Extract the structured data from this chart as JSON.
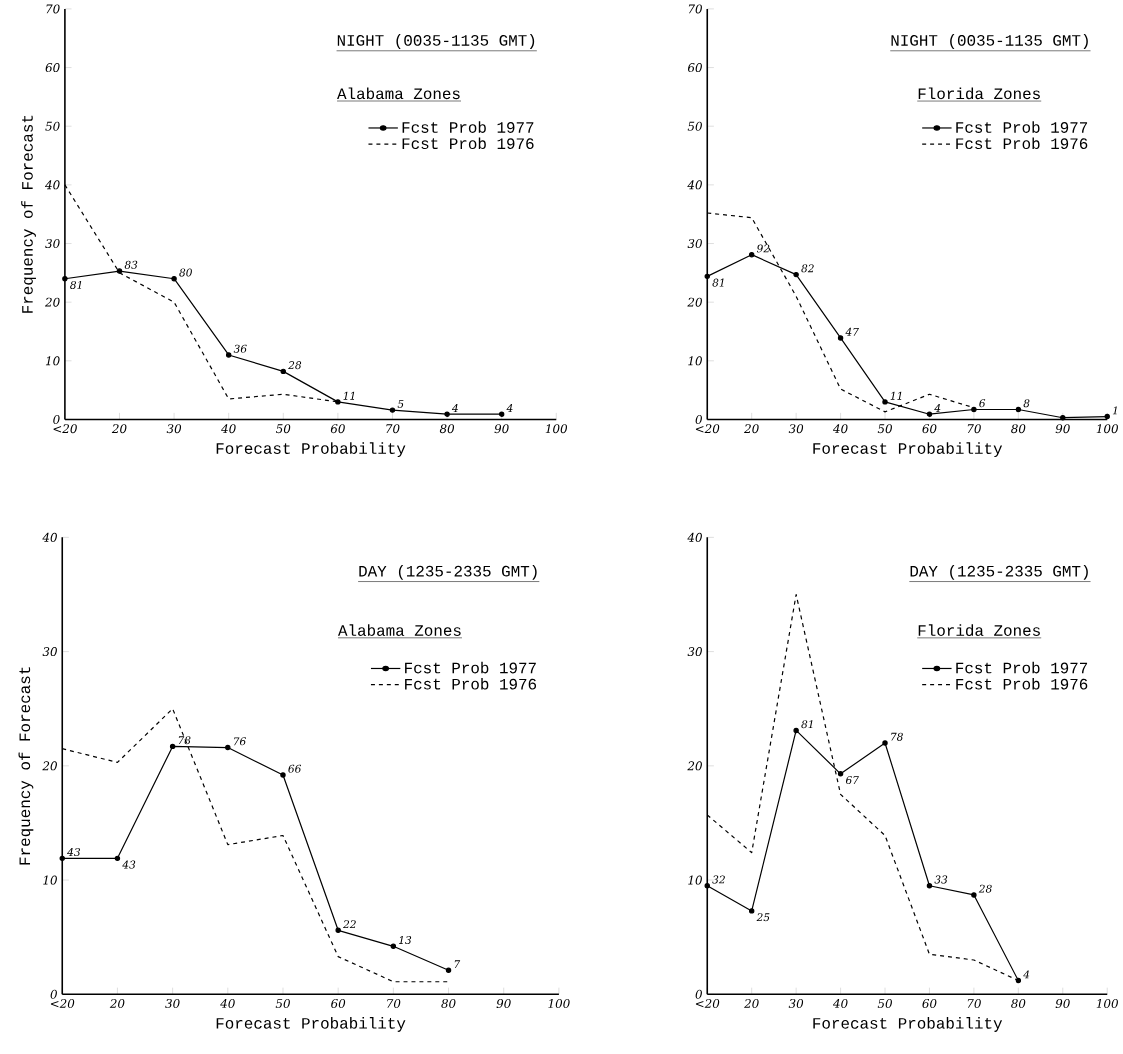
{
  "chart_data": [
    {
      "type": "line",
      "title": "NIGHT (0035-1135 GMT)",
      "subtitle": "Alabama Zones",
      "xlabel": "Forecast Probability",
      "ylabel": "Frequency of Forecast",
      "categories": [
        "<20",
        "20",
        "30",
        "40",
        "50",
        "60",
        "70",
        "80",
        "90",
        "100"
      ],
      "ylim": [
        0,
        70
      ],
      "yticks": [
        0,
        10,
        20,
        30,
        40,
        50,
        60,
        70
      ],
      "legend": "top right",
      "series": [
        {
          "name": "Fcst Prob 1977",
          "color": "#000000",
          "line_style": "solid",
          "marker": "circle",
          "values": [
            24,
            25.3,
            24,
            11,
            8.2,
            3,
            1.6,
            0.9,
            0.9,
            null
          ]
        },
        {
          "name": "Fcst Prob 1976",
          "color": "#000000",
          "line_style": "dashed",
          "marker": "none",
          "values": [
            40,
            25,
            20,
            3.5,
            4.3,
            3,
            null,
            null,
            null,
            null
          ]
        }
      ],
      "annotations": [
        {
          "text": "81",
          "x": "<20",
          "y": 24
        },
        {
          "text": "83",
          "x": "20",
          "y": 25.3
        },
        {
          "text": "80",
          "x": "30",
          "y": 24
        },
        {
          "text": "36",
          "x": "40",
          "y": 11
        },
        {
          "text": "28",
          "x": "50",
          "y": 8.2
        },
        {
          "text": "11",
          "x": "60",
          "y": 3
        },
        {
          "text": "5",
          "x": "70",
          "y": 1.6
        },
        {
          "text": "4",
          "x": "80",
          "y": 0.9
        },
        {
          "text": "4",
          "x": "90",
          "y": 0.9
        }
      ]
    },
    {
      "type": "line",
      "title": "NIGHT (0035-1135 GMT)",
      "subtitle": "Florida Zones",
      "xlabel": "Forecast Probability",
      "categories": [
        "<20",
        "20",
        "30",
        "40",
        "50",
        "60",
        "70",
        "80",
        "90",
        "100"
      ],
      "ylim": [
        0,
        70
      ],
      "yticks": [
        0,
        10,
        20,
        30,
        40,
        50,
        60,
        70
      ],
      "legend": "top right",
      "series": [
        {
          "name": "Fcst Prob 1977",
          "color": "#000000",
          "line_style": "solid",
          "marker": "circle",
          "values": [
            24.4,
            28.1,
            24.7,
            13.9,
            3,
            0.9,
            1.7,
            1.7,
            0.3,
            0.5
          ]
        },
        {
          "name": "Fcst Prob 1976",
          "color": "#000000",
          "line_style": "dashed",
          "marker": "none",
          "values": [
            35.2,
            34.4,
            21,
            5.2,
            1.3,
            4.3,
            2,
            null,
            null,
            null
          ]
        }
      ],
      "annotations": [
        {
          "text": "81",
          "x": "<20",
          "y": 24.4
        },
        {
          "text": "92",
          "x": "20",
          "y": 28.1
        },
        {
          "text": "82",
          "x": "30",
          "y": 24.7
        },
        {
          "text": "47",
          "x": "40",
          "y": 13.9
        },
        {
          "text": "11",
          "x": "50",
          "y": 3
        },
        {
          "text": "4",
          "x": "60",
          "y": 0.9
        },
        {
          "text": "6",
          "x": "70",
          "y": 1.7
        },
        {
          "text": "8",
          "x": "80",
          "y": 1.7
        },
        {
          "text": "1",
          "x": "100",
          "y": 0.5
        }
      ]
    },
    {
      "type": "line",
      "title": "DAY (1235-2335 GMT)",
      "subtitle": "Alabama Zones",
      "xlabel": "Forecast Probability",
      "ylabel": "Frequency of Forecast",
      "categories": [
        "<20",
        "20",
        "30",
        "40",
        "50",
        "60",
        "70",
        "80",
        "90",
        "100"
      ],
      "ylim": [
        0,
        40
      ],
      "yticks": [
        0,
        10,
        20,
        30,
        40
      ],
      "legend": "top right",
      "series": [
        {
          "name": "Fcst Prob 1977",
          "color": "#000000",
          "line_style": "solid",
          "marker": "circle",
          "values": [
            11.9,
            11.9,
            21.7,
            21.6,
            19.2,
            5.6,
            4.2,
            2.1,
            null,
            null
          ]
        },
        {
          "name": "Fcst Prob 1976",
          "color": "#000000",
          "line_style": "dashed",
          "marker": "none",
          "values": [
            21.5,
            20.3,
            25,
            13.1,
            13.9,
            3.3,
            1.1,
            1.1,
            null,
            null
          ]
        }
      ],
      "annotations": [
        {
          "text": "43",
          "x": "<20",
          "y": 11.9
        },
        {
          "text": "43",
          "x": "20",
          "y": 11.9
        },
        {
          "text": "78",
          "x": "30",
          "y": 21.7
        },
        {
          "text": "76",
          "x": "40",
          "y": 21.6
        },
        {
          "text": "66",
          "x": "50",
          "y": 19.2
        },
        {
          "text": "22",
          "x": "60",
          "y": 5.6
        },
        {
          "text": "13",
          "x": "70",
          "y": 4.2
        },
        {
          "text": "7",
          "x": "80",
          "y": 2.1
        }
      ]
    },
    {
      "type": "line",
      "title": "DAY (1235-2335 GMT)",
      "subtitle": "Florida Zones",
      "xlabel": "Forecast Probability",
      "categories": [
        "<20",
        "20",
        "30",
        "40",
        "50",
        "60",
        "70",
        "80",
        "90",
        "100"
      ],
      "ylim": [
        0,
        40
      ],
      "yticks": [
        0,
        10,
        20,
        30,
        40
      ],
      "legend": "top right",
      "series": [
        {
          "name": "Fcst Prob 1977",
          "color": "#000000",
          "line_style": "solid",
          "marker": "circle",
          "values": [
            9.5,
            7.3,
            23.1,
            19.3,
            22,
            9.5,
            8.7,
            1.2,
            null,
            null
          ]
        },
        {
          "name": "Fcst Prob 1976",
          "color": "#000000",
          "line_style": "dashed",
          "marker": "none",
          "values": [
            15.7,
            12.4,
            35,
            17.5,
            13.9,
            3.5,
            3,
            1.2,
            null,
            null
          ]
        }
      ],
      "annotations": [
        {
          "text": "32",
          "x": "<20",
          "y": 9.5
        },
        {
          "text": "25",
          "x": "20",
          "y": 7.3
        },
        {
          "text": "81",
          "x": "30",
          "y": 23.1
        },
        {
          "text": "67",
          "x": "40",
          "y": 19.3
        },
        {
          "text": "78",
          "x": "50",
          "y": 22
        },
        {
          "text": "33",
          "x": "60",
          "y": 9.5
        },
        {
          "text": "28",
          "x": "70",
          "y": 8.7
        },
        {
          "text": "4",
          "x": "80",
          "y": 1.2
        }
      ]
    }
  ]
}
